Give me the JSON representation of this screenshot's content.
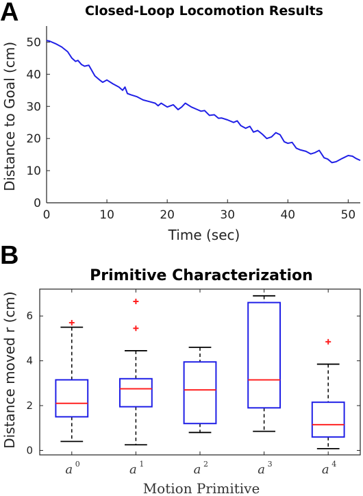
{
  "chart_data": [
    {
      "panel": "A",
      "type": "line",
      "title": "Closed-Loop Locomotion Results",
      "xlabel": "Time (sec)",
      "ylabel": "Distance to Goal (cm)",
      "xlim": [
        0,
        52
      ],
      "ylim": [
        0,
        55
      ],
      "xticks": [
        0,
        10,
        20,
        30,
        40,
        50
      ],
      "yticks": [
        0,
        10,
        20,
        30,
        40,
        50
      ],
      "color": "#1f1fe6",
      "series": [
        {
          "x": [
            0,
            0.5,
            1.5,
            2.5,
            3.5,
            4.2,
            4.8,
            5.2,
            5.8,
            6.3,
            7,
            8,
            8.8,
            9.3,
            10,
            11,
            12,
            12.6,
            13,
            13.4,
            14,
            15,
            16,
            17,
            18,
            18.5,
            19,
            20,
            21,
            21.8,
            22.4,
            23,
            24,
            25,
            25.6,
            26.2,
            27,
            27.8,
            28.5,
            29,
            30,
            31,
            31.6,
            32.2,
            33,
            33.7,
            34.3,
            35,
            35.8,
            36.5,
            37.3,
            38,
            38.7,
            39.4,
            40,
            40.7,
            41.4,
            42,
            43,
            43.8,
            44.5,
            45.2,
            46,
            46.6,
            47.3,
            48,
            49,
            50,
            50.7,
            51.3,
            52
          ],
          "y": [
            50.5,
            50.3,
            49.5,
            48.5,
            47,
            45,
            44,
            44.3,
            43,
            42.5,
            42.8,
            39.5,
            38.2,
            37.5,
            38.2,
            37,
            36,
            35,
            36,
            34,
            33.6,
            33,
            32,
            31.5,
            31,
            30.2,
            31,
            29.8,
            30.5,
            29,
            29.8,
            31,
            29.8,
            29,
            28.5,
            28.7,
            27.2,
            27.4,
            26.3,
            26.4,
            25.8,
            25,
            25.5,
            24,
            23.2,
            23.8,
            22,
            22.5,
            21.3,
            20,
            20.5,
            21.8,
            21.2,
            19,
            18.5,
            18.8,
            17,
            16.5,
            16,
            15.2,
            15.6,
            16.3,
            14,
            13.6,
            12.5,
            12.8,
            13.8,
            14.7,
            14.5,
            13.8,
            13.2
          ]
        }
      ]
    },
    {
      "panel": "B",
      "type": "box",
      "title": "Primitive Characterization",
      "xlabel": "Motion Primitive",
      "ylabel": "Distance moved r (cm)",
      "ylim": [
        -0.2,
        7.2
      ],
      "yticks": [
        0,
        2,
        4,
        6
      ],
      "box_color": "#1f1fe6",
      "median_color": "#ff2020",
      "outlier_color": "#ff2020",
      "categories": [
        {
          "base": "a",
          "sup": "0"
        },
        {
          "base": "a",
          "sup": "1"
        },
        {
          "base": "a",
          "sup": "2"
        },
        {
          "base": "a",
          "sup": "3"
        },
        {
          "base": "a",
          "sup": "4"
        }
      ],
      "boxes": [
        {
          "whisker_low": 0.4,
          "q1": 1.5,
          "median": 2.1,
          "q3": 3.15,
          "whisker_high": 5.5,
          "outliers": [
            5.7
          ]
        },
        {
          "whisker_low": 0.25,
          "q1": 1.95,
          "median": 2.75,
          "q3": 3.2,
          "whisker_high": 4.45,
          "outliers": [
            5.45,
            6.65
          ]
        },
        {
          "whisker_low": 0.8,
          "q1": 1.2,
          "median": 2.7,
          "q3": 3.95,
          "whisker_high": 4.6,
          "outliers": []
        },
        {
          "whisker_low": 0.85,
          "q1": 1.9,
          "median": 3.15,
          "q3": 6.6,
          "whisker_high": 6.9,
          "outliers": []
        },
        {
          "whisker_low": 0.08,
          "q1": 0.6,
          "median": 1.15,
          "q3": 2.15,
          "whisker_high": 3.85,
          "outliers": [
            4.85
          ]
        }
      ]
    }
  ],
  "labels": {
    "panel_a": "A",
    "panel_b": "B"
  }
}
